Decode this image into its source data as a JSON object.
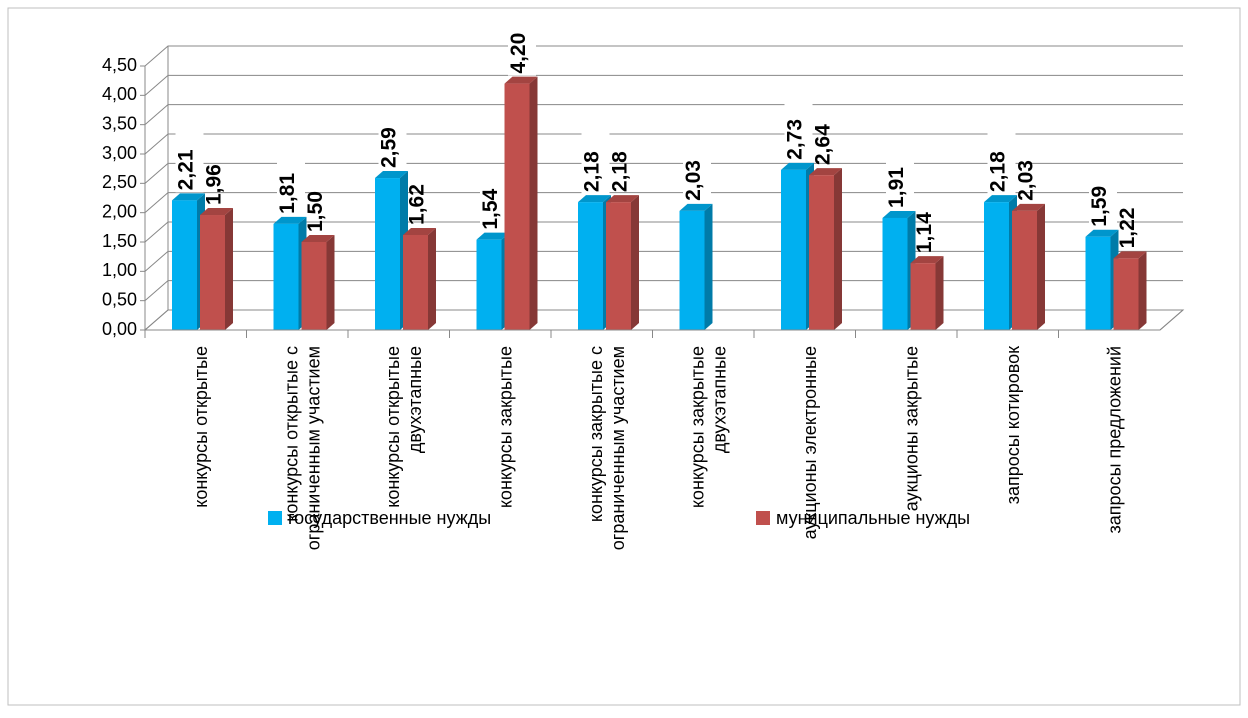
{
  "chart_data": {
    "type": "bar3d",
    "categories": [
      "конкурсы открытые",
      "конкурсы открытые с\nограниченным участием",
      "конкурсы открытые\nдвухэтапные",
      "конкурсы закрытые",
      "конкурсы закрытые с\nограниченным участием",
      "конкурсы закрытые\nдвухэтапные",
      "аукционы электронные",
      "аукционы закрытые",
      "запросы котировок",
      "запросы предложений"
    ],
    "series": [
      {
        "name": "государственные нужды",
        "color": "#00b0f0",
        "values": [
          2.21,
          1.81,
          2.59,
          1.54,
          2.18,
          2.03,
          2.73,
          1.91,
          2.18,
          1.59
        ],
        "value_labels": [
          "2,21",
          "1,81",
          "2,59",
          "1,54",
          "2,18",
          "2,03",
          "2,73",
          "1,91",
          "2,18",
          "1,59"
        ]
      },
      {
        "name": "муниципальные нужды",
        "color": "#c0504d",
        "values": [
          1.96,
          1.5,
          1.62,
          4.2,
          2.18,
          null,
          2.64,
          1.14,
          2.03,
          1.22
        ],
        "value_labels": [
          "1,96",
          "1,50",
          "1,62",
          "4,20",
          "2,18",
          null,
          "2,64",
          "1,14",
          "2,03",
          "1,22"
        ]
      }
    ],
    "ylim": [
      0,
      4.5
    ],
    "yticks": [
      {
        "value": 0,
        "label": "0,00"
      },
      {
        "value": 0.5,
        "label": "0,50"
      },
      {
        "value": 1,
        "label": "1,00"
      },
      {
        "value": 1.5,
        "label": "1,50"
      },
      {
        "value": 2,
        "label": "2,00"
      },
      {
        "value": 2.5,
        "label": "2,50"
      },
      {
        "value": 3,
        "label": "3,00"
      },
      {
        "value": 3.5,
        "label": "3,50"
      },
      {
        "value": 4,
        "label": "4,00"
      },
      {
        "value": 4.5,
        "label": "4,50"
      }
    ],
    "grid": true,
    "legend": "bottom"
  }
}
